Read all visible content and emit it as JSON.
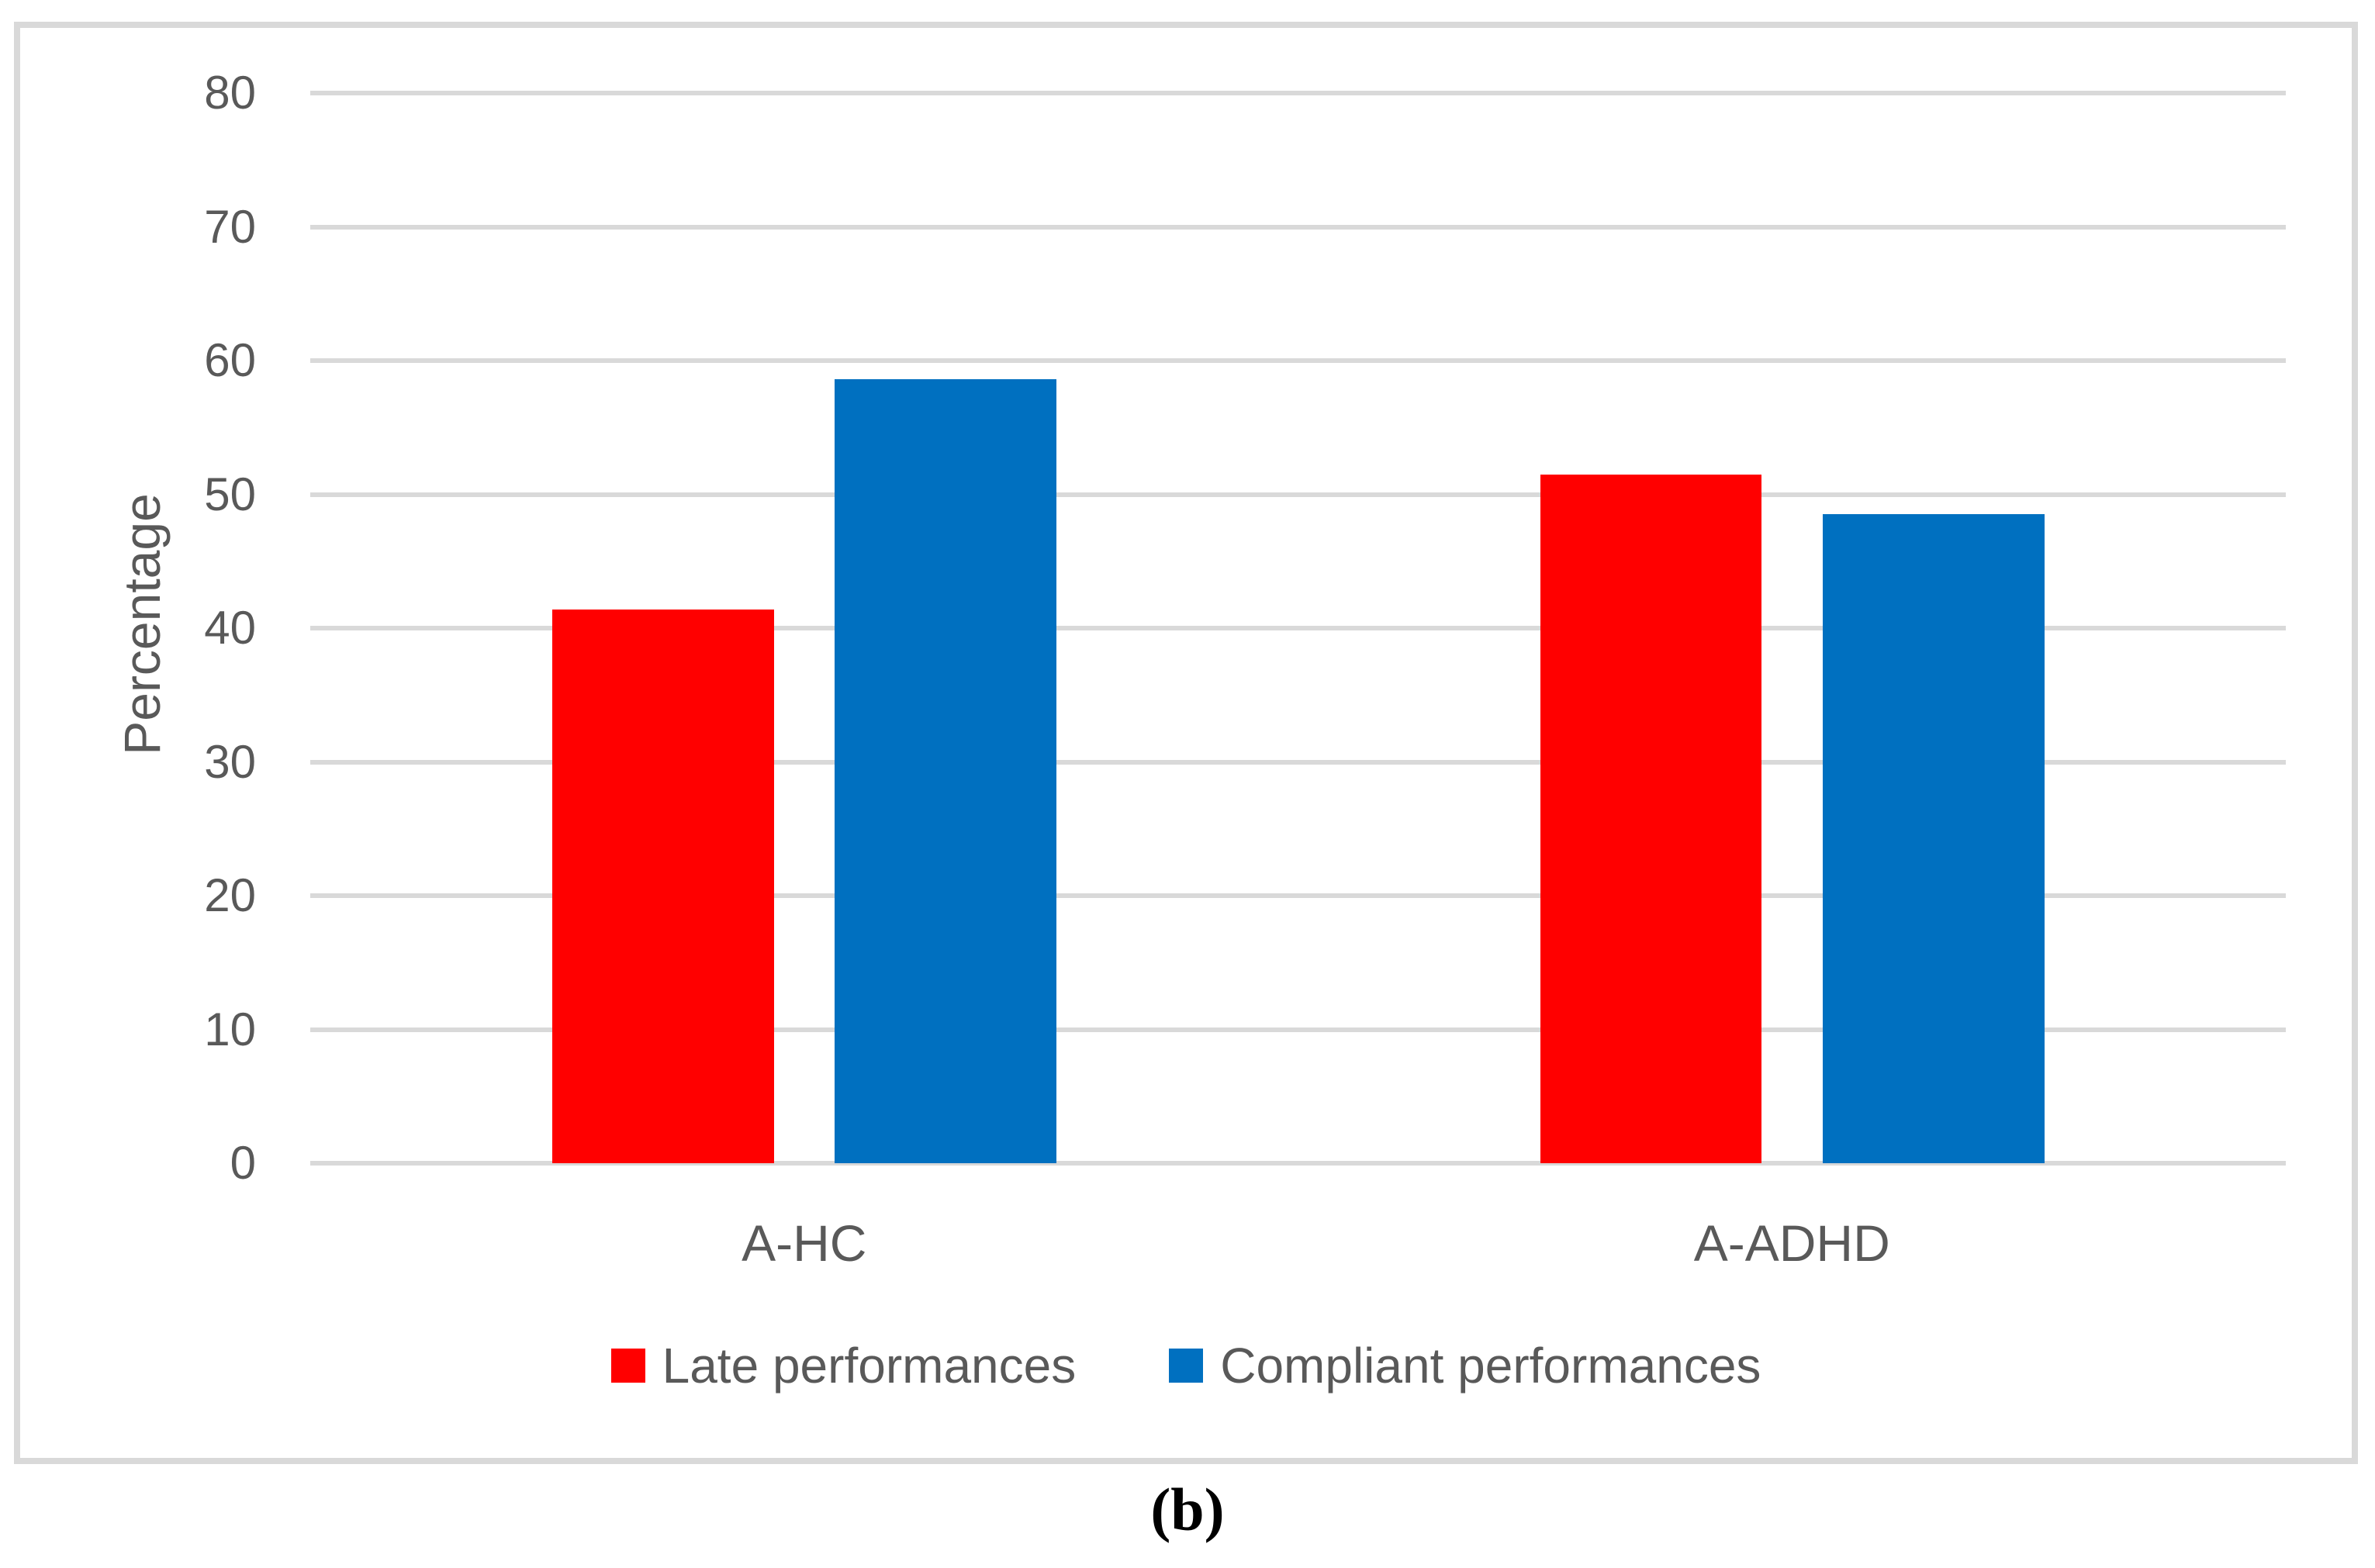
{
  "figure": {
    "caption": "(b)"
  },
  "colors": {
    "series_late": "#FF0000",
    "series_compliant": "#0070C0",
    "gridline": "#D9D9D9",
    "frame_border": "#D9D9D9",
    "axis_text": "#595959",
    "background": "#FFFFFF"
  },
  "chart_data": {
    "type": "bar",
    "title": "",
    "xlabel": "",
    "ylabel": "Percentage",
    "categories": [
      "A-HC",
      "A-ADHD"
    ],
    "series": [
      {
        "name": "Late performances",
        "color": "#FF0000",
        "values": [
          41.4,
          51.5
        ]
      },
      {
        "name": "Compliant performances",
        "color": "#0070C0",
        "values": [
          58.6,
          48.5
        ]
      }
    ],
    "ylim": [
      0,
      80
    ],
    "ytick_step": 10,
    "yticks": [
      0,
      10,
      20,
      30,
      40,
      50,
      60,
      70,
      80
    ],
    "grid": true,
    "legend_position": "bottom"
  }
}
